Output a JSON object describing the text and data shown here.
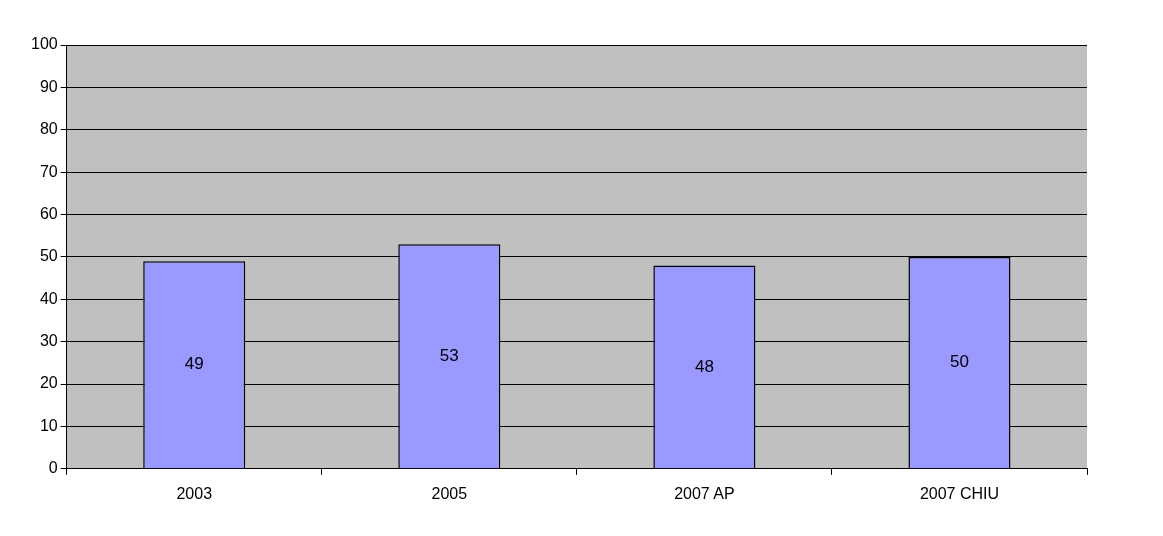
{
  "chart_data": {
    "type": "bar",
    "categories": [
      "2003",
      "2005",
      "2007 AP",
      "2007 CHIU"
    ],
    "values": [
      49,
      53,
      48,
      50
    ],
    "color": "#9999ff",
    "ylim": [
      0,
      100
    ],
    "yticks": [
      0,
      10,
      20,
      30,
      40,
      50,
      60,
      70,
      80,
      90,
      100
    ],
    "grid": "y",
    "data_labels": true,
    "legend": false
  }
}
